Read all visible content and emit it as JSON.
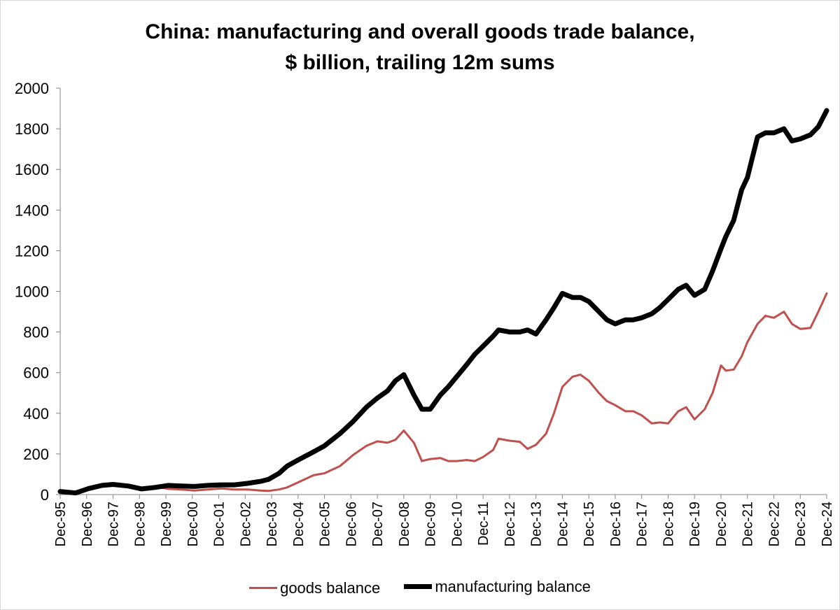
{
  "chart_data": {
    "type": "line",
    "title_line1": "China: manufacturing and overall goods trade balance,",
    "title_line2": "$ billion, trailing 12m sums",
    "xlabel": "",
    "ylabel": "",
    "ylim": [
      0,
      2000
    ],
    "yticks": [
      "0",
      "200",
      "400",
      "600",
      "800",
      "1000",
      "1200",
      "1400",
      "1600",
      "1800",
      "2000"
    ],
    "x_range": [
      1995.917,
      2024.917
    ],
    "categories": [
      "Dec-95",
      "Dec-96",
      "Dec-97",
      "Dec-98",
      "Dec-99",
      "Dec-00",
      "Dec-01",
      "Dec-02",
      "Dec-03",
      "Dec-04",
      "Dec-05",
      "Dec-06",
      "Dec-07",
      "Dec-08",
      "Dec-09",
      "Dec-10",
      "Dec-11",
      "Dec-12",
      "Dec-13",
      "Dec-14",
      "Dec-15",
      "Dec-16",
      "Dec-17",
      "Dec-18",
      "Dec-19",
      "Dec-20",
      "Dec-21",
      "Dec-22",
      "Dec-23",
      "Dec-24"
    ],
    "legend_position": "bottom",
    "series": [
      {
        "name": "goods balance",
        "color": "#c0504d",
        "x": [
          1995.917,
          1996.5,
          1997.0,
          1997.5,
          1997.917,
          1998.5,
          1999.0,
          1999.5,
          2000.0,
          2000.5,
          2001.0,
          2001.5,
          2002.0,
          2002.5,
          2003.0,
          2003.5,
          2003.8,
          2004.2,
          2004.5,
          2004.917,
          2005.5,
          2005.917,
          2006.5,
          2007.0,
          2007.5,
          2007.917,
          2008.3,
          2008.6,
          2008.917,
          2009.3,
          2009.6,
          2009.917,
          2010.3,
          2010.6,
          2010.917,
          2011.3,
          2011.6,
          2011.917,
          2012.3,
          2012.5,
          2012.917,
          2013.3,
          2013.6,
          2013.917,
          2014.3,
          2014.6,
          2014.917,
          2015.3,
          2015.6,
          2015.917,
          2016.3,
          2016.6,
          2016.917,
          2017.3,
          2017.6,
          2017.917,
          2018.3,
          2018.6,
          2018.917,
          2019.3,
          2019.6,
          2019.917,
          2020.3,
          2020.6,
          2020.917,
          2021.1,
          2021.4,
          2021.7,
          2021.917,
          2022.3,
          2022.6,
          2022.917,
          2023.3,
          2023.6,
          2023.917,
          2024.3,
          2024.6,
          2024.917
        ],
        "values": [
          18,
          12,
          30,
          45,
          48,
          40,
          30,
          40,
          28,
          25,
          20,
          25,
          30,
          25,
          25,
          20,
          18,
          25,
          35,
          60,
          95,
          105,
          140,
          195,
          240,
          262,
          255,
          270,
          315,
          255,
          165,
          175,
          180,
          165,
          165,
          170,
          165,
          185,
          220,
          275,
          265,
          260,
          225,
          245,
          300,
          400,
          530,
          580,
          590,
          560,
          500,
          460,
          440,
          410,
          410,
          390,
          350,
          355,
          350,
          410,
          430,
          370,
          420,
          500,
          635,
          610,
          615,
          680,
          750,
          840,
          880,
          870,
          900,
          840,
          815,
          820,
          900,
          990
        ]
      },
      {
        "name": "manufacturing balance",
        "color": "#000000",
        "x": [
          1995.917,
          1996.5,
          1997.0,
          1997.5,
          1997.917,
          1998.5,
          1999.0,
          1999.5,
          2000.0,
          2000.5,
          2001.0,
          2001.5,
          2002.0,
          2002.5,
          2003.0,
          2003.5,
          2003.8,
          2004.2,
          2004.5,
          2004.917,
          2005.5,
          2005.917,
          2006.5,
          2007.0,
          2007.5,
          2007.917,
          2008.3,
          2008.6,
          2008.917,
          2009.3,
          2009.6,
          2009.917,
          2010.3,
          2010.6,
          2010.917,
          2011.3,
          2011.6,
          2011.917,
          2012.3,
          2012.5,
          2012.917,
          2013.3,
          2013.6,
          2013.917,
          2014.3,
          2014.6,
          2014.917,
          2015.3,
          2015.6,
          2015.917,
          2016.3,
          2016.6,
          2016.917,
          2017.3,
          2017.6,
          2017.917,
          2018.3,
          2018.6,
          2018.917,
          2019.3,
          2019.6,
          2019.917,
          2020.3,
          2020.6,
          2020.917,
          2021.1,
          2021.4,
          2021.7,
          2021.917,
          2022.3,
          2022.6,
          2022.917,
          2023.3,
          2023.6,
          2023.917,
          2024.3,
          2024.6,
          2024.917
        ],
        "values": [
          15,
          8,
          30,
          45,
          50,
          42,
          28,
          35,
          45,
          42,
          40,
          45,
          48,
          48,
          55,
          65,
          75,
          105,
          140,
          170,
          210,
          240,
          300,
          360,
          430,
          475,
          510,
          560,
          590,
          490,
          420,
          420,
          490,
          530,
          580,
          640,
          690,
          730,
          780,
          810,
          800,
          800,
          810,
          790,
          860,
          920,
          990,
          970,
          970,
          950,
          900,
          860,
          840,
          860,
          860,
          870,
          890,
          920,
          960,
          1010,
          1030,
          980,
          1010,
          1100,
          1210,
          1270,
          1350,
          1500,
          1560,
          1760,
          1780,
          1780,
          1800,
          1740,
          1750,
          1770,
          1810,
          1890
        ]
      }
    ]
  }
}
